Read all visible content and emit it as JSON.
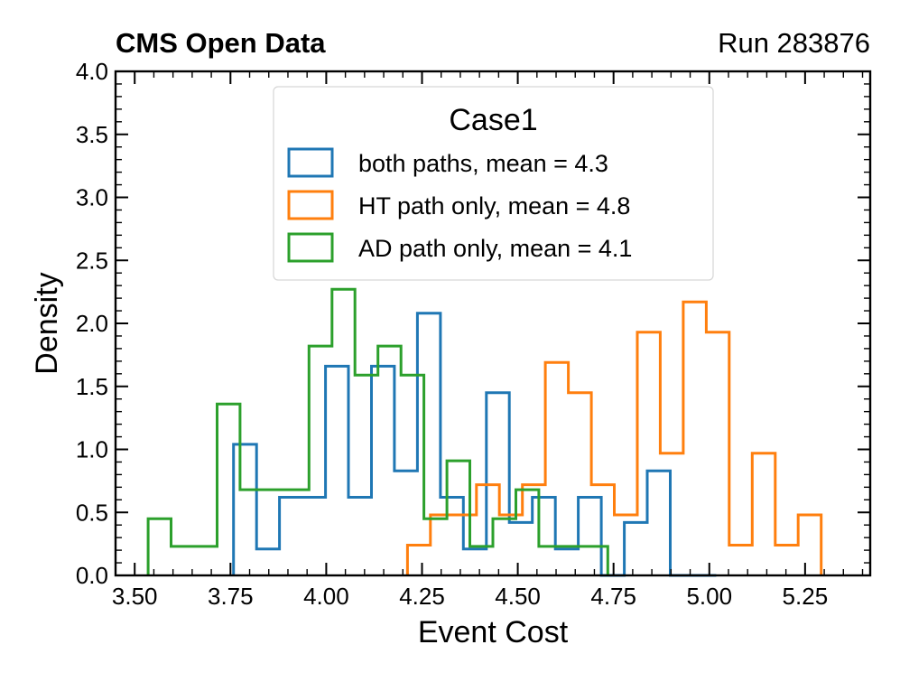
{
  "chart_data": {
    "type": "step-histogram",
    "header_left": "CMS Open Data",
    "header_right": "Run 283876",
    "xlabel": "Event Cost",
    "ylabel": "Density",
    "xlim": [
      3.45,
      5.42
    ],
    "ylim": [
      0.0,
      4.0
    ],
    "x_ticks": [
      3.5,
      3.75,
      4.0,
      4.25,
      4.5,
      4.75,
      5.0,
      5.25
    ],
    "x_tick_labels": [
      "3.50",
      "3.75",
      "4.00",
      "4.25",
      "4.50",
      "4.75",
      "5.00",
      "5.25"
    ],
    "y_ticks": [
      0.0,
      0.5,
      1.0,
      1.5,
      2.0,
      2.5,
      3.0,
      3.5,
      4.0
    ],
    "y_tick_labels": [
      "0.0",
      "0.5",
      "1.0",
      "1.5",
      "2.0",
      "2.5",
      "3.0",
      "3.5",
      "4.0"
    ],
    "legend": {
      "title": "Case1",
      "position": "upper-center"
    },
    "series": [
      {
        "name": "both paths, mean = 4.3",
        "color": "#1f77b4",
        "edges": [
          3.758,
          3.818,
          3.878,
          3.938,
          3.998,
          4.058,
          4.118,
          4.178,
          4.238,
          4.298,
          4.358,
          4.418,
          4.478,
          4.538,
          4.598,
          4.658,
          4.718,
          4.778,
          4.838,
          4.898,
          4.958,
          5.018
        ],
        "values": [
          1.04,
          0.21,
          0.62,
          0.62,
          1.66,
          0.62,
          1.66,
          0.83,
          2.08,
          0.62,
          0.21,
          1.45,
          0.42,
          0.62,
          0.21,
          0.62,
          0.0,
          0.42,
          0.83,
          0.0,
          0.0
        ]
      },
      {
        "name": "HT path only, mean = 4.8",
        "color": "#ff7f0e",
        "edges": [
          4.212,
          4.272,
          4.332,
          4.392,
          4.452,
          4.512,
          4.572,
          4.632,
          4.692,
          4.752,
          4.812,
          4.872,
          4.932,
          4.992,
          5.052,
          5.112,
          5.172,
          5.232,
          5.292
        ],
        "values": [
          0.24,
          0.48,
          0.48,
          0.72,
          0.48,
          0.72,
          1.69,
          1.45,
          0.72,
          0.48,
          1.93,
          0.97,
          2.17,
          1.93,
          0.24,
          0.97,
          0.24,
          0.48
        ]
      },
      {
        "name": "AD path only, mean = 4.1",
        "color": "#2ca02c",
        "edges": [
          3.535,
          3.595,
          3.655,
          3.715,
          3.775,
          3.835,
          3.895,
          3.955,
          4.015,
          4.075,
          4.135,
          4.195,
          4.255,
          4.315,
          4.375,
          4.435,
          4.495,
          4.555,
          4.615,
          4.675,
          4.735
        ],
        "values": [
          0.45,
          0.23,
          0.23,
          1.36,
          0.68,
          0.68,
          0.68,
          1.82,
          2.27,
          1.59,
          1.82,
          1.59,
          0.45,
          0.91,
          0.23,
          0.45,
          0.68,
          0.23,
          0.23,
          0.23
        ]
      }
    ]
  }
}
